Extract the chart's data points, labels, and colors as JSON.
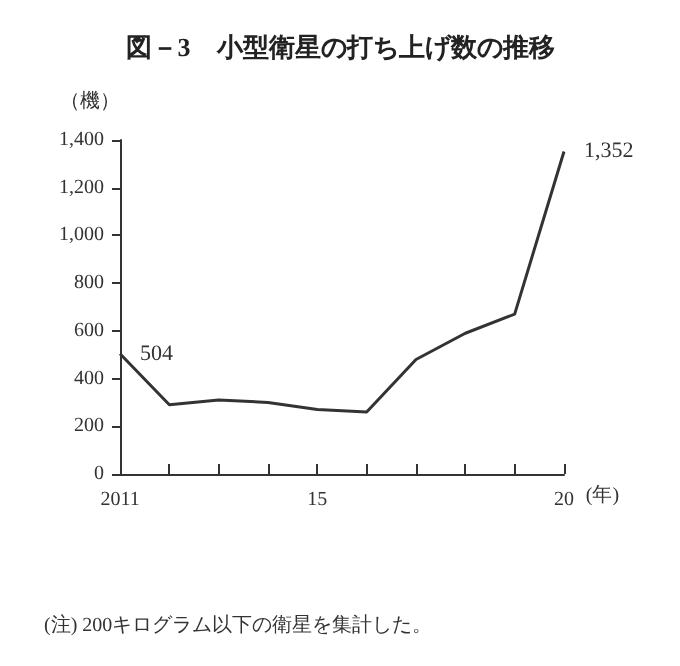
{
  "chart_data": {
    "type": "line",
    "title": "図－3　小型衛星の打ち上げ数の推移",
    "ylabel": "（機）",
    "xlabel": "(年)",
    "categories": [
      "2011",
      null,
      null,
      null,
      "15",
      null,
      null,
      null,
      null,
      "20"
    ],
    "series": [
      {
        "color": "#333333",
        "values": [
          504,
          290,
          310,
          300,
          270,
          260,
          480,
          590,
          670,
          1352
        ],
        "value_labels": [
          "504",
          null,
          null,
          null,
          null,
          null,
          null,
          null,
          null,
          "1,352"
        ]
      }
    ],
    "ylim": [
      0,
      1400
    ],
    "yticks": [
      0,
      200,
      400,
      600,
      800,
      {
        "value": 1000,
        "label": "1,000"
      },
      {
        "value": 1200,
        "label": "1,200"
      },
      {
        "value": 1400,
        "label": "1,400"
      }
    ],
    "grid": false,
    "marker": "none",
    "line_style": "solid",
    "annotations": [
      "(注) 200キログラム以下の衛星を集計した。"
    ]
  }
}
